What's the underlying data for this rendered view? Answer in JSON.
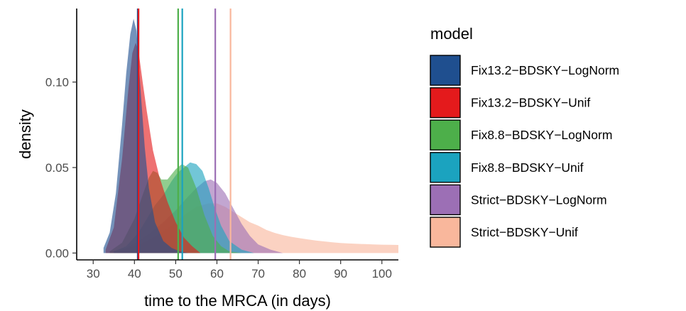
{
  "chart_data": {
    "type": "area",
    "xlabel": "time to the MRCA (in days)",
    "ylabel": "density",
    "xlim": [
      26,
      104
    ],
    "ylim": [
      -0.004,
      0.143
    ],
    "x_ticks": [
      30,
      40,
      50,
      60,
      70,
      80,
      90,
      100
    ],
    "y_ticks": [
      0.0,
      0.05,
      0.1
    ],
    "y_tick_labels": [
      "0.00",
      "0.05",
      "0.10"
    ],
    "grid": false,
    "legend": {
      "title": "model",
      "position": "right",
      "entries": [
        "Fix13.2−BDSKY−LogNorm",
        "Fix13.2−BDSKY−Unif",
        "Fix8.8−BDSKY−LogNorm",
        "Fix8.8−BDSKY−Unif",
        "Strict−BDSKY−LogNorm",
        "Strict−BDSKY−Unif"
      ]
    },
    "series": [
      {
        "name": "Fix13.2−BDSKY−LogNorm",
        "color": "#1f4f8f",
        "median": 40.8,
        "x": [
          32.5,
          34,
          35.5,
          37,
          38,
          39,
          39.8,
          40.5,
          41.5,
          42.5,
          43.5,
          45,
          47,
          49,
          51,
          53
        ],
        "y": [
          0.003,
          0.012,
          0.035,
          0.075,
          0.105,
          0.128,
          0.137,
          0.13,
          0.095,
          0.062,
          0.038,
          0.018,
          0.007,
          0.003,
          0.001,
          0.0
        ]
      },
      {
        "name": "Fix13.2−BDSKY−Unif",
        "color": "#e41a1c",
        "median": 41.0,
        "x": [
          33,
          35,
          37,
          38.5,
          39.5,
          40.3,
          41,
          42,
          43,
          44.5,
          46,
          48,
          50,
          52,
          54,
          56
        ],
        "y": [
          0.002,
          0.015,
          0.055,
          0.095,
          0.117,
          0.123,
          0.118,
          0.1,
          0.083,
          0.06,
          0.045,
          0.03,
          0.018,
          0.009,
          0.004,
          0.0
        ]
      },
      {
        "name": "Fix8.8−BDSKY−LogNorm",
        "color": "#4daf4a",
        "median": 50.6,
        "x": [
          34,
          37,
          40,
          42,
          43.5,
          44.5,
          45.5,
          46.5,
          48,
          50,
          51.5,
          53,
          55,
          57,
          59,
          61,
          63,
          66
        ],
        "y": [
          0.001,
          0.006,
          0.02,
          0.034,
          0.044,
          0.048,
          0.047,
          0.043,
          0.043,
          0.049,
          0.052,
          0.05,
          0.038,
          0.022,
          0.01,
          0.004,
          0.001,
          0.0
        ]
      },
      {
        "name": "Fix8.8−BDSKY−Unif",
        "color": "#1ba3bf",
        "median": 51.6,
        "x": [
          35,
          38,
          41,
          43,
          45,
          47,
          49,
          50.5,
          52,
          53.5,
          55,
          56.5,
          58,
          59.5,
          61,
          63,
          66,
          69
        ],
        "y": [
          0.001,
          0.004,
          0.012,
          0.02,
          0.028,
          0.034,
          0.042,
          0.047,
          0.05,
          0.053,
          0.052,
          0.048,
          0.038,
          0.026,
          0.016,
          0.007,
          0.002,
          0.0
        ]
      },
      {
        "name": "Strict−BDSKY−LogNorm",
        "color": "#9c6fb5",
        "median": 59.6,
        "x": [
          35,
          38,
          41,
          44,
          47,
          50,
          53,
          55,
          57,
          58.5,
          60,
          62,
          64,
          66,
          68,
          70,
          73,
          76
        ],
        "y": [
          0.001,
          0.003,
          0.007,
          0.012,
          0.018,
          0.025,
          0.033,
          0.038,
          0.042,
          0.043,
          0.041,
          0.035,
          0.026,
          0.017,
          0.01,
          0.005,
          0.002,
          0.0
        ]
      },
      {
        "name": "Strict−BDSKY−Unif",
        "color": "#f9b79c",
        "median": 63.3,
        "x": [
          34,
          37,
          40,
          43,
          46,
          49,
          52,
          55,
          58,
          60,
          62,
          64,
          66,
          68,
          70,
          72,
          74,
          76,
          78,
          80,
          82,
          84,
          86,
          88,
          90,
          92,
          94,
          96,
          98,
          100,
          102,
          104
        ],
        "y": [
          0.001,
          0.002,
          0.004,
          0.007,
          0.011,
          0.016,
          0.022,
          0.027,
          0.029,
          0.029,
          0.027,
          0.024,
          0.021,
          0.018,
          0.016,
          0.0135,
          0.0118,
          0.0105,
          0.0095,
          0.0087,
          0.008,
          0.0073,
          0.0068,
          0.0063,
          0.0059,
          0.0056,
          0.0054,
          0.0052,
          0.005,
          0.0049,
          0.0048,
          0.0047
        ]
      }
    ]
  }
}
